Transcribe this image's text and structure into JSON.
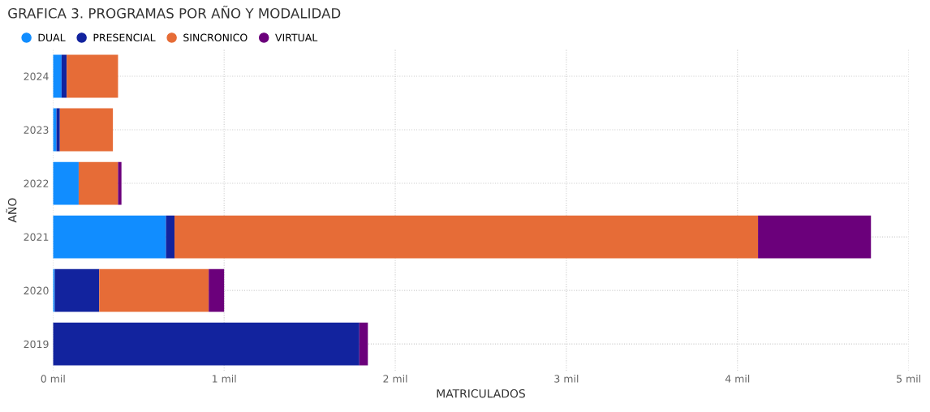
{
  "chart_data": {
    "type": "bar",
    "orientation": "horizontal",
    "stacked": true,
    "title": "GRAFICA 3. PROGRAMAS POR AÑO Y MODALIDAD",
    "xlabel": "MATRICULADOS",
    "ylabel": "AÑO",
    "categories": [
      "2024",
      "2023",
      "2022",
      "2021",
      "2020",
      "2019"
    ],
    "series": [
      {
        "name": "DUAL",
        "color": "#118dff",
        "values": [
          0.05,
          0.02,
          0.15,
          0.66,
          0.01,
          0
        ]
      },
      {
        "name": "PRESENCIAL",
        "color": "#12239e",
        "values": [
          0.03,
          0.02,
          0,
          0.05,
          0.26,
          1.79
        ]
      },
      {
        "name": "SINCRONICO",
        "color": "#e66c37",
        "values": [
          0.3,
          0.31,
          0.23,
          3.41,
          0.64,
          0
        ]
      },
      {
        "name": "VIRTUAL",
        "color": "#6b007b",
        "values": [
          0,
          0,
          0.02,
          0.66,
          0.09,
          0.05
        ]
      }
    ],
    "xlim": [
      0,
      5
    ],
    "xticks": [
      {
        "value": 0,
        "label": "0 mil"
      },
      {
        "value": 1,
        "label": "1 mil"
      },
      {
        "value": 2,
        "label": "2 mil"
      },
      {
        "value": 3,
        "label": "3 mil"
      },
      {
        "value": 4,
        "label": "4 mil"
      },
      {
        "value": 5,
        "label": "5 mil"
      }
    ],
    "grid": true,
    "line_style": "dotted",
    "legend": "top left",
    "marker": "circle"
  }
}
